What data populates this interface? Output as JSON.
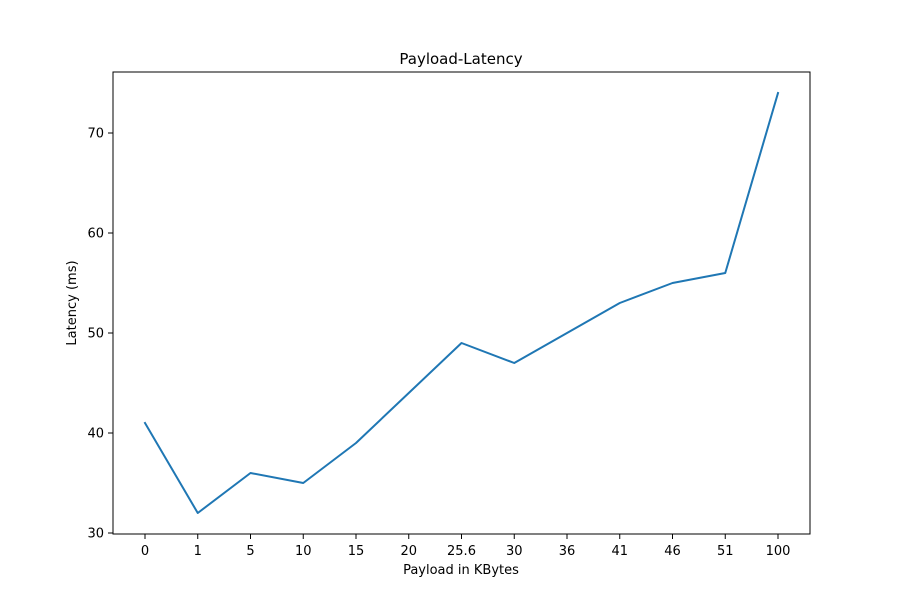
{
  "chart_data": {
    "type": "line",
    "title": "Payload-Latency",
    "xlabel": "Payload in KBytes",
    "ylabel": "Latency (ms)",
    "categories": [
      "0",
      "1",
      "5",
      "10",
      "15",
      "20",
      "25.6",
      "30",
      "36",
      "41",
      "46",
      "51",
      "100"
    ],
    "series": [
      {
        "values": [
          41,
          32,
          36,
          35,
          39,
          44,
          49,
          47,
          50,
          53,
          55,
          56,
          74
        ],
        "color": "#1f77b4"
      }
    ],
    "ylim": [
      30,
      75
    ],
    "yticks": [
      30,
      40,
      50,
      60,
      70
    ],
    "grid": false,
    "legend": "none"
  }
}
